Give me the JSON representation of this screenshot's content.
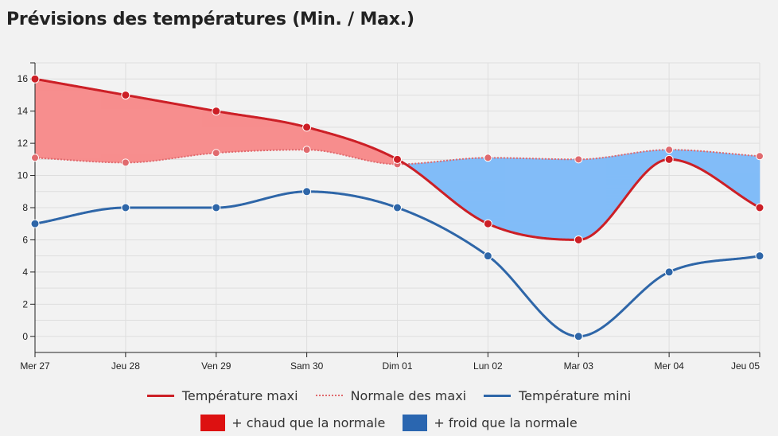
{
  "title": "Prévisions des températures (Min. / Max.)",
  "legend": {
    "max_label": "Température maxi",
    "normal_label": "Normale des maxi",
    "min_label": "Température mini",
    "warmer_label": "+ chaud que la normale",
    "colder_label": "+ froid que la normale"
  },
  "colors": {
    "max": "#cc1f26",
    "normal": "#e06a6e",
    "min": "#2e66a8",
    "warm_fill": "#f78e8e",
    "cold_fill": "#82bcf8",
    "warm_swatch": "#dd1111",
    "cold_swatch": "#2a66b0"
  },
  "chart_data": {
    "type": "line",
    "categories": [
      "Mer 27",
      "Jeu 28",
      "Ven 29",
      "Sam 30",
      "Dim 01",
      "Lun 02",
      "Mar 03",
      "Mer 04",
      "Jeu 05"
    ],
    "series": [
      {
        "name": "Température maxi",
        "values": [
          16,
          15,
          14,
          13,
          11,
          7,
          6,
          11,
          8
        ]
      },
      {
        "name": "Normale des maxi",
        "values": [
          11.1,
          10.8,
          11.4,
          11.6,
          10.7,
          11.1,
          11.0,
          11.6,
          11.2
        ]
      },
      {
        "name": "Température mini",
        "values": [
          7,
          8,
          8,
          9,
          8,
          5,
          0,
          4,
          5
        ]
      }
    ],
    "ylim": [
      -1,
      17
    ],
    "yticks": [
      0,
      2,
      4,
      6,
      8,
      10,
      12,
      14,
      16
    ],
    "grid": true,
    "legend_position": "bottom"
  }
}
